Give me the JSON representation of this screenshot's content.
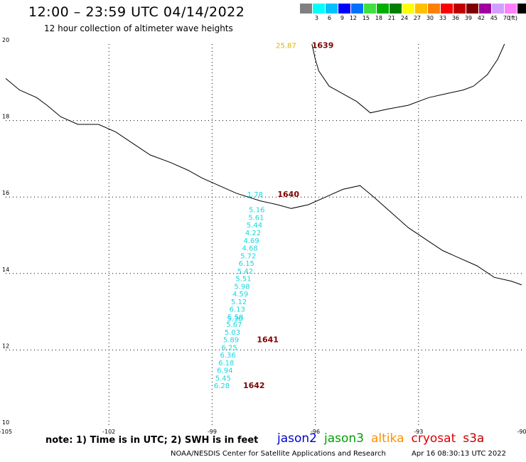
{
  "header": {
    "title": "12:00 – 23:59 UTC 04/14/2022",
    "subtitle": "12 hour collection of altimeter wave heights"
  },
  "legend": {
    "colors": [
      "#808080",
      "#00ffff",
      "#00c0ff",
      "#0000ff",
      "#0070ff",
      "#40e040",
      "#00b000",
      "#008000",
      "#ffff00",
      "#ffc000",
      "#ff8000",
      "#ff0000",
      "#c00000",
      "#800000",
      "#a000a0",
      "#d0a0ff",
      "#ff80ff",
      "#000000"
    ],
    "labels": [
      "3",
      "6",
      "9",
      "12",
      "15",
      "18",
      "21",
      "24",
      "27",
      "30",
      "33",
      "36",
      "39",
      "42",
      "45",
      "70"
    ],
    "unit": "(ft)"
  },
  "map": {
    "lon_range": [
      -105,
      -90
    ],
    "lat_range": [
      10,
      20
    ],
    "lon_ticks": [
      {
        "value": -105,
        "label": "-105"
      },
      {
        "value": -102,
        "label": "-102"
      },
      {
        "value": -99,
        "label": "-99"
      },
      {
        "value": -96,
        "label": "-96"
      },
      {
        "value": -93,
        "label": "-93"
      },
      {
        "value": -90,
        "label": "-90"
      }
    ],
    "lat_ticks": [
      {
        "value": 20,
        "label": "20"
      },
      {
        "value": 18,
        "label": "18"
      },
      {
        "value": 16,
        "label": "16"
      },
      {
        "value": 14,
        "label": "14"
      },
      {
        "value": 12,
        "label": "12"
      },
      {
        "value": 10,
        "label": "10"
      }
    ],
    "coastline": [
      [
        -105,
        19.1
      ],
      [
        -104.6,
        18.8
      ],
      [
        -104.1,
        18.6
      ],
      [
        -103.8,
        18.4
      ],
      [
        -103.4,
        18.1
      ],
      [
        -102.9,
        17.9
      ],
      [
        -102.3,
        17.9
      ],
      [
        -101.8,
        17.7
      ],
      [
        -101.3,
        17.4
      ],
      [
        -100.8,
        17.1
      ],
      [
        -100.2,
        16.9
      ],
      [
        -99.7,
        16.7
      ],
      [
        -99.3,
        16.5
      ],
      [
        -98.8,
        16.3
      ],
      [
        -98.3,
        16.1
      ],
      [
        -97.6,
        15.9
      ],
      [
        -97.1,
        15.8
      ],
      [
        -96.7,
        15.7
      ],
      [
        -96.2,
        15.8
      ],
      [
        -95.7,
        16.0
      ],
      [
        -95.2,
        16.2
      ],
      [
        -94.7,
        16.3
      ],
      [
        -94.3,
        16.0
      ],
      [
        -93.8,
        15.6
      ],
      [
        -93.3,
        15.2
      ],
      [
        -92.8,
        14.9
      ],
      [
        -92.3,
        14.6
      ],
      [
        -91.8,
        14.4
      ],
      [
        -91.3,
        14.2
      ],
      [
        -90.8,
        13.9
      ],
      [
        -90.3,
        13.8
      ],
      [
        -90,
        13.7
      ]
    ],
    "gulf_coast": [
      [
        -96.1,
        20
      ],
      [
        -96.0,
        19.6
      ],
      [
        -95.9,
        19.3
      ],
      [
        -95.6,
        18.9
      ],
      [
        -95.2,
        18.7
      ],
      [
        -94.8,
        18.5
      ],
      [
        -94.4,
        18.2
      ],
      [
        -93.9,
        18.3
      ],
      [
        -93.3,
        18.4
      ],
      [
        -92.7,
        18.6
      ],
      [
        -92.2,
        18.7
      ],
      [
        -91.7,
        18.8
      ],
      [
        -91.4,
        18.9
      ],
      [
        -91.0,
        19.2
      ],
      [
        -90.7,
        19.6
      ],
      [
        -90.5,
        20
      ]
    ],
    "wave_color": "#18d6e0",
    "orbit_color": "#800000",
    "observations": [
      {
        "lon": -97.75,
        "lat": 16.0,
        "swh": "1.78"
      },
      {
        "lon": -97.7,
        "lat": 15.6,
        "swh": "5.16"
      },
      {
        "lon": -97.72,
        "lat": 15.4,
        "swh": "5.61"
      },
      {
        "lon": -97.77,
        "lat": 15.2,
        "swh": "5.44"
      },
      {
        "lon": -97.81,
        "lat": 15.0,
        "swh": "4.22"
      },
      {
        "lon": -97.86,
        "lat": 14.8,
        "swh": "4.69"
      },
      {
        "lon": -97.9,
        "lat": 14.6,
        "swh": "4.68"
      },
      {
        "lon": -97.95,
        "lat": 14.4,
        "swh": "5.72"
      },
      {
        "lon": -98.0,
        "lat": 14.2,
        "swh": "6.15"
      },
      {
        "lon": -98.04,
        "lat": 14.0,
        "swh": "5.42"
      },
      {
        "lon": -98.09,
        "lat": 13.8,
        "swh": "5.51"
      },
      {
        "lon": -98.13,
        "lat": 13.6,
        "swh": "5.98"
      },
      {
        "lon": -98.18,
        "lat": 13.4,
        "swh": "4.59"
      },
      {
        "lon": -98.22,
        "lat": 13.2,
        "swh": "5.12"
      },
      {
        "lon": -98.27,
        "lat": 13.0,
        "swh": "6.13"
      },
      {
        "lon": -98.32,
        "lat": 12.8,
        "swh": "5.58"
      },
      {
        "lon": -98.34,
        "lat": 12.75,
        "swh": "5.30"
      },
      {
        "lon": -98.36,
        "lat": 12.6,
        "swh": "5.67"
      },
      {
        "lon": -98.41,
        "lat": 12.4,
        "swh": "5.03"
      },
      {
        "lon": -98.45,
        "lat": 12.2,
        "swh": "5.89"
      },
      {
        "lon": -98.5,
        "lat": 12.0,
        "swh": "6.25"
      },
      {
        "lon": -98.54,
        "lat": 11.8,
        "swh": "6.36"
      },
      {
        "lon": -98.59,
        "lat": 11.6,
        "swh": "6.18"
      },
      {
        "lon": -98.63,
        "lat": 11.4,
        "swh": "6.94"
      },
      {
        "lon": -98.68,
        "lat": 11.2,
        "swh": "5.45"
      },
      {
        "lon": -98.72,
        "lat": 11.0,
        "swh": "6.28"
      }
    ],
    "orbit_labels": [
      {
        "lon": -97.1,
        "lat": 16.0,
        "text": "1640"
      },
      {
        "lon": -97.7,
        "lat": 12.2,
        "text": "1641"
      },
      {
        "lon": -98.1,
        "lat": 11.0,
        "text": "1642"
      },
      {
        "lon": -96.1,
        "lat": 19.9,
        "text": "1639"
      }
    ],
    "other_obs": [
      {
        "lon": -96.85,
        "lat": 19.9,
        "swh": "25.87",
        "color": "#e0b000"
      }
    ]
  },
  "footer": {
    "note": "note: 1) Time is in UTC; 2) SWH is in feet",
    "satellites": [
      {
        "name": "jason2",
        "color": "#0000d0"
      },
      {
        "name": "jason3",
        "color": "#00a000"
      },
      {
        "name": "altika",
        "color": "#ff9000"
      },
      {
        "name": "cryosat",
        "color": "#e00000"
      },
      {
        "name": "s3a",
        "color": "#c00000"
      }
    ],
    "credit": "NOAA/NESDIS Center for Satellite Applications and Research",
    "timestamp": "Apr 16 08:30:13 UTC 2022"
  }
}
